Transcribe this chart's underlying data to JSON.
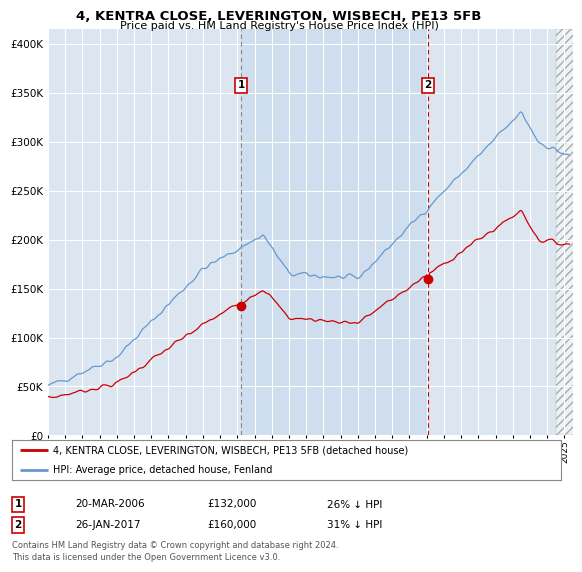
{
  "title1": "4, KENTRA CLOSE, LEVERINGTON, WISBECH, PE13 5FB",
  "title2": "Price paid vs. HM Land Registry's House Price Index (HPI)",
  "ytick_values": [
    0,
    50000,
    100000,
    150000,
    200000,
    250000,
    300000,
    350000,
    400000
  ],
  "ylim": [
    0,
    415000
  ],
  "xlim_start": 1995.0,
  "xlim_end": 2025.5,
  "hpi_color": "#6699cc",
  "price_color": "#cc0000",
  "marker1_x": 2006.22,
  "marker1_label": "1",
  "marker2_x": 2017.07,
  "marker2_label": "2",
  "legend_line1": "4, KENTRA CLOSE, LEVERINGTON, WISBECH, PE13 5FB (detached house)",
  "legend_line2": "HPI: Average price, detached house, Fenland",
  "table_row1_num": "1",
  "table_row1_date": "20-MAR-2006",
  "table_row1_price": "£132,000",
  "table_row1_hpi": "26% ↓ HPI",
  "table_row2_num": "2",
  "table_row2_date": "26-JAN-2017",
  "table_row2_price": "£160,000",
  "table_row2_hpi": "31% ↓ HPI",
  "footnote": "Contains HM Land Registry data © Crown copyright and database right 2024.\nThis data is licensed under the Open Government Licence v3.0.",
  "background_color": "#ffffff",
  "plot_bg_color": "#dce6f1",
  "grid_color": "#ffffff"
}
